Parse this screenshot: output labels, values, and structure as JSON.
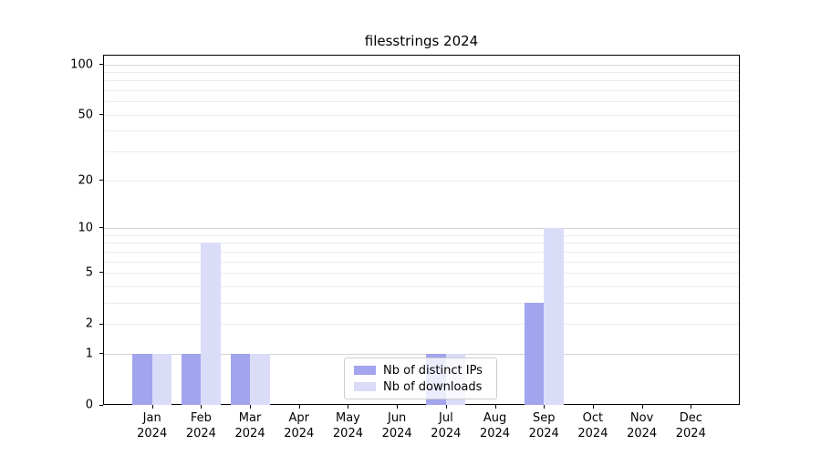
{
  "chart_data": {
    "type": "bar",
    "title": "filesstrings 2024",
    "categories": [
      "Jan 2024",
      "Feb 2024",
      "Mar 2024",
      "Apr 2024",
      "May 2024",
      "Jun 2024",
      "Jul 2024",
      "Aug 2024",
      "Sep 2024",
      "Oct 2024",
      "Nov 2024",
      "Dec 2024"
    ],
    "series": [
      {
        "name": "Nb of distinct IPs",
        "color": "#a2a4ee",
        "values": [
          1,
          1,
          1,
          0,
          0,
          0,
          1,
          0,
          3,
          0,
          0,
          0
        ]
      },
      {
        "name": "Nb of downloads",
        "color": "#dbdcf8",
        "values": [
          1,
          8,
          1,
          0,
          0,
          0,
          1,
          0,
          10,
          0,
          0,
          0
        ]
      }
    ],
    "xlabel": "",
    "ylabel": "",
    "yscale": "log1p",
    "ylim": [
      0,
      114
    ],
    "yticks": [
      0,
      1,
      2,
      5,
      10,
      20,
      50,
      100
    ],
    "grid": {
      "on": true,
      "major_values": [
        1,
        10,
        100
      ],
      "minor_values": [
        2,
        3,
        4,
        5,
        6,
        7,
        8,
        9,
        20,
        30,
        40,
        50,
        60,
        70,
        80,
        90
      ],
      "major_color": "#d4d4d4",
      "minor_color": "#ececec"
    },
    "legend_position": "lower center",
    "axis_color": "#000000",
    "background_color": "#ffffff"
  }
}
